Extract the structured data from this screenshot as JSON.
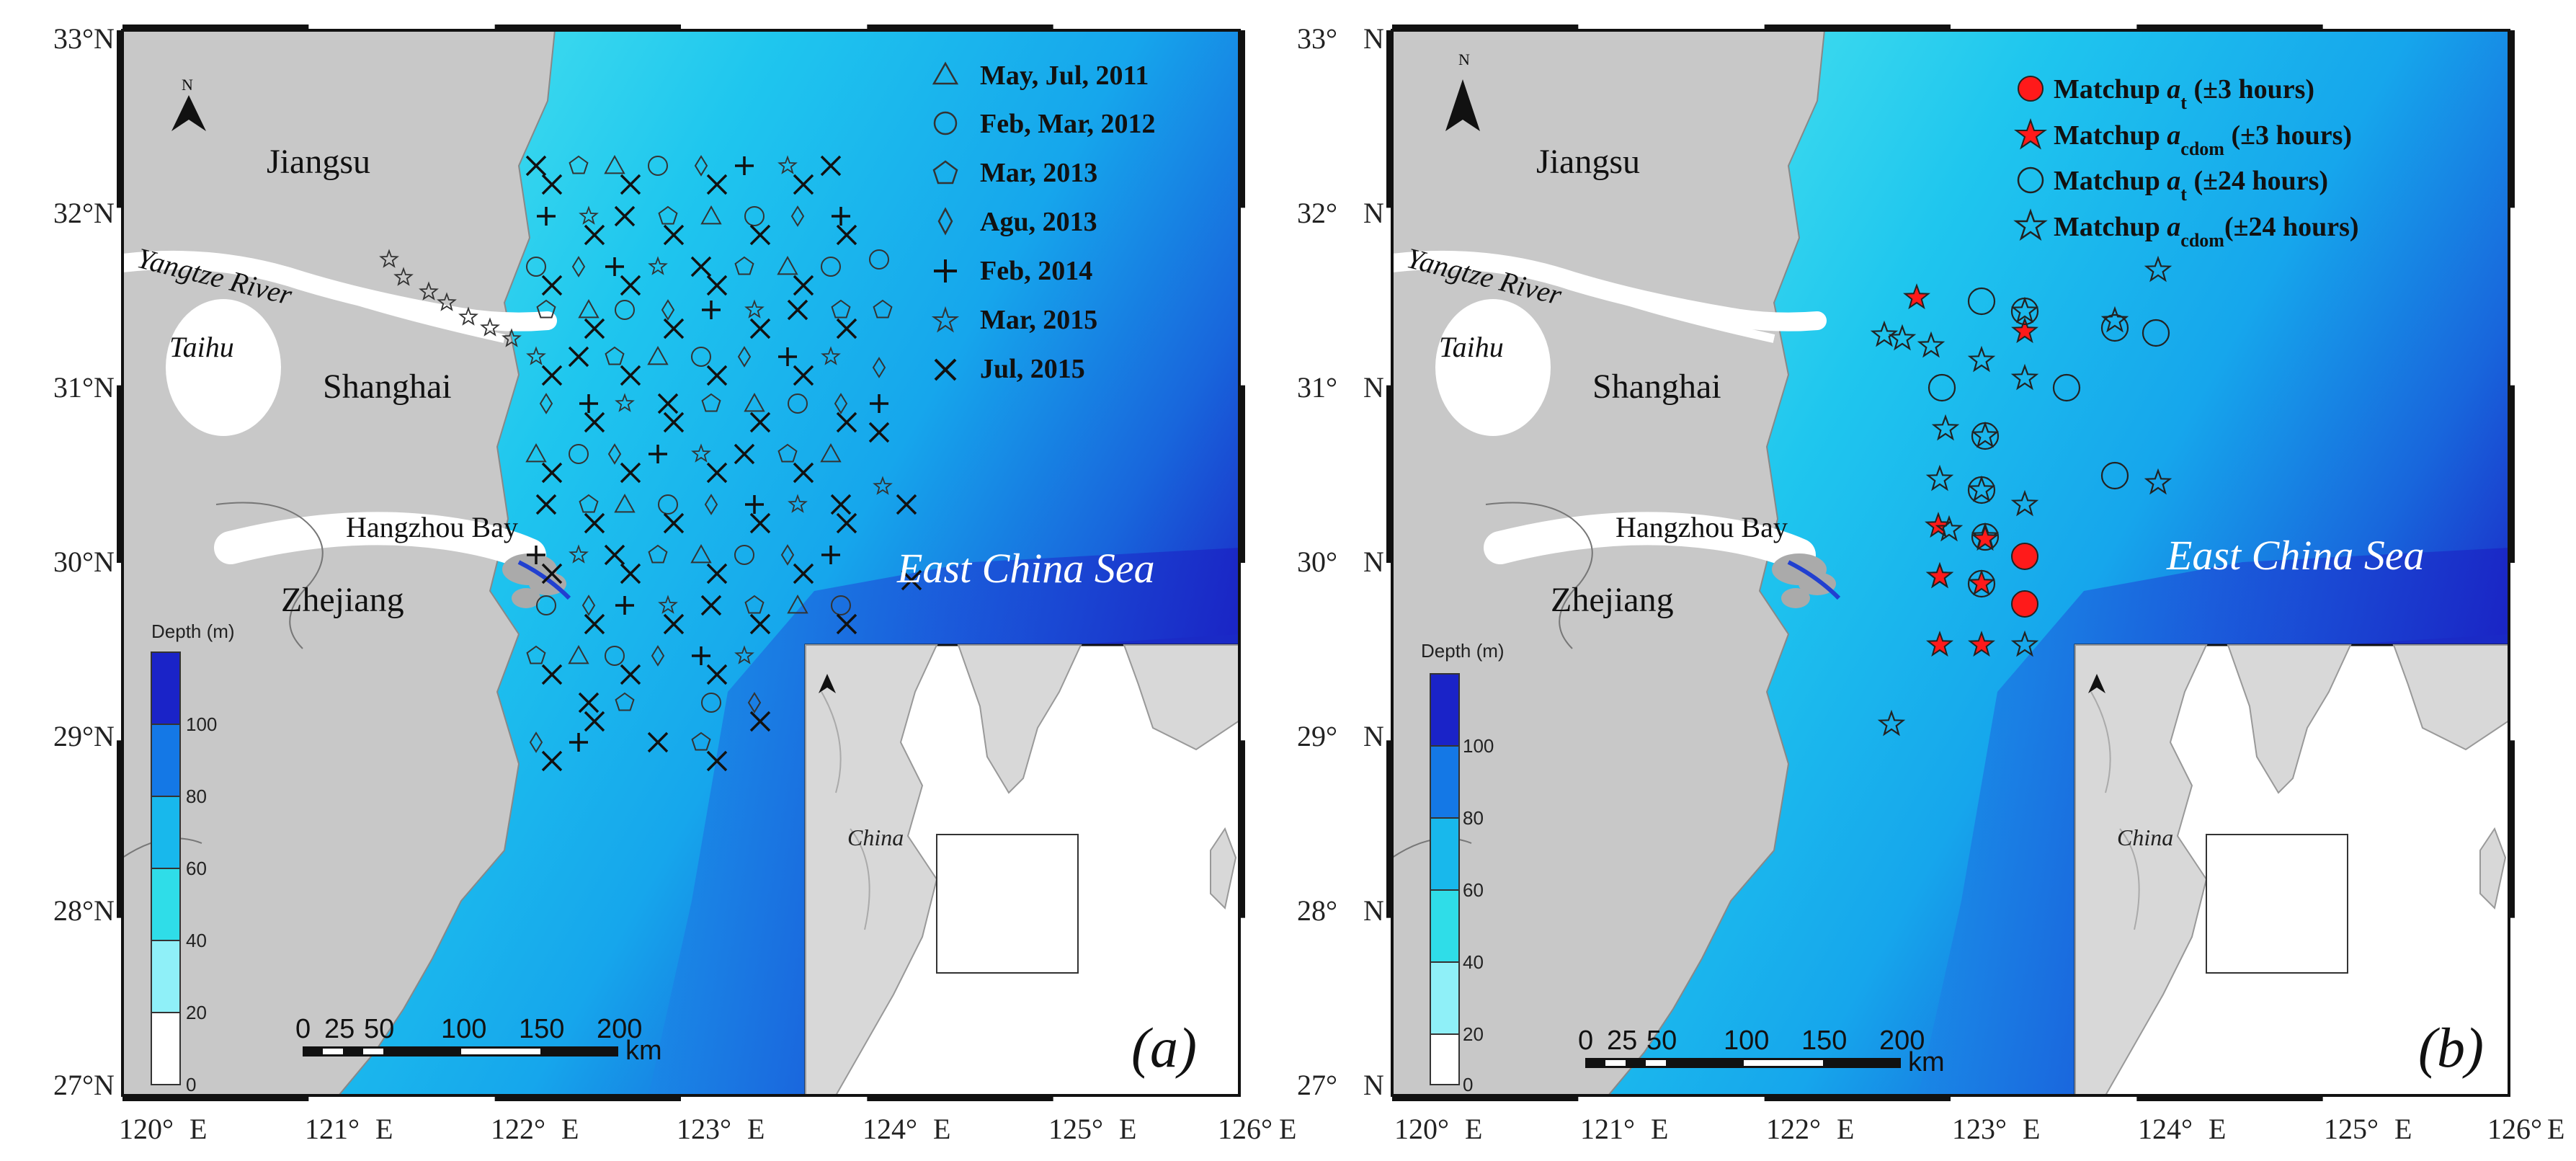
{
  "axes": {
    "lat_ticks": [
      "33°",
      "32°",
      "31°",
      "30°",
      "29°",
      "28°",
      "27°"
    ],
    "lat_suffix": "N",
    "lon_ticks": [
      "120°",
      "121°",
      "122°",
      "123°",
      "124°",
      "125°",
      "126°"
    ],
    "lon_suffix": "E"
  },
  "places": {
    "jiangsu": "Jiangsu",
    "yangtze": "Yangtze River",
    "taihu": "Taihu",
    "shanghai": "Shanghai",
    "hangzhou_bay": "Hangzhou Bay",
    "zhejiang": "Zhejiang",
    "east_china_sea": "East China Sea",
    "china": "China"
  },
  "north_label": "N",
  "depth_scale": {
    "title": "Depth (m)",
    "ticks": [
      "100",
      "80",
      "60",
      "40",
      "20",
      "0"
    ]
  },
  "scale_bar": {
    "labels": [
      "0",
      "25",
      "50",
      "100",
      "150",
      "200"
    ],
    "unit": "km"
  },
  "panel_a": {
    "label": "(a)",
    "legend": [
      {
        "symbol": "triangle",
        "text": "May, Jul, 2011"
      },
      {
        "symbol": "circle",
        "text": "Feb, Mar, 2012"
      },
      {
        "symbol": "pentagon",
        "text": "Mar, 2013"
      },
      {
        "symbol": "diamond",
        "text": "Agu, 2013"
      },
      {
        "symbol": "plus",
        "text": "Feb, 2014"
      },
      {
        "symbol": "star",
        "text": "Mar, 2015"
      },
      {
        "symbol": "cross",
        "text": "Jul, 2015"
      }
    ]
  },
  "panel_b": {
    "label": "(b)",
    "legend": [
      {
        "symbol": "filled-circle",
        "prefix": "Matchup ",
        "var": "a",
        "sub": "t",
        "suffix": " (±3 hours)"
      },
      {
        "symbol": "filled-star",
        "prefix": "Matchup ",
        "var": "a",
        "sub": "cdom",
        "suffix": " (±3 hours)"
      },
      {
        "symbol": "open-circle",
        "prefix": "Matchup ",
        "var": "a",
        "sub": "t",
        "suffix": " (±24 hours)"
      },
      {
        "symbol": "open-star",
        "prefix": "Matchup ",
        "var": "a",
        "sub": "cdom",
        "suffix": "(±24 hours)"
      }
    ]
  },
  "colors": {
    "land": "#c8c8c8",
    "depth_0_20": "#ffffff",
    "depth_20_40": "#8ff0f8",
    "depth_40_60": "#2fdde8",
    "depth_60_80": "#18b8ec",
    "depth_80_100": "#1478e6",
    "depth_100": "#1a23c8",
    "matchup_fill": "#ff1a1a"
  }
}
